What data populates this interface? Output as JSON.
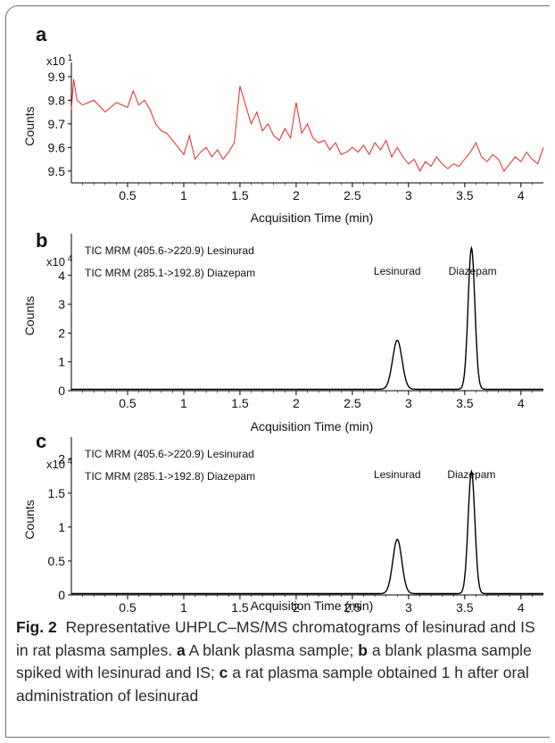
{
  "chart_data": [
    {
      "panel": "a",
      "type": "line",
      "xlabel": "Acquisition Time (min)",
      "ylabel": "Counts",
      "y_scale_label": "x10 1",
      "xlim": [
        0,
        4.2
      ],
      "ylim": [
        9.45,
        9.93
      ],
      "xticks": [
        "0.5",
        "1",
        "1.5",
        "2",
        "2.5",
        "3",
        "3.5",
        "4"
      ],
      "yticks": [
        "9.5",
        "9.6",
        "9.7",
        "9.8",
        "9.9"
      ],
      "line_color": "#e8262a",
      "series": [
        {
          "x": [
            0.0,
            0.02,
            0.05,
            0.1,
            0.2,
            0.3,
            0.4,
            0.5,
            0.55,
            0.6,
            0.65,
            0.7,
            0.75,
            0.8,
            0.85,
            0.9,
            0.95,
            1.0,
            1.05,
            1.1,
            1.15,
            1.2,
            1.25,
            1.3,
            1.35,
            1.4,
            1.45,
            1.5,
            1.55,
            1.6,
            1.65,
            1.7,
            1.75,
            1.8,
            1.85,
            1.9,
            1.95,
            2.0,
            2.05,
            2.1,
            2.15,
            2.2,
            2.25,
            2.3,
            2.35,
            2.4,
            2.45,
            2.5,
            2.55,
            2.6,
            2.65,
            2.7,
            2.75,
            2.8,
            2.85,
            2.9,
            2.95,
            3.0,
            3.05,
            3.1,
            3.15,
            3.2,
            3.25,
            3.3,
            3.35,
            3.4,
            3.45,
            3.5,
            3.55,
            3.6,
            3.65,
            3.7,
            3.75,
            3.8,
            3.85,
            3.9,
            3.95,
            4.0,
            4.05,
            4.1,
            4.15,
            4.2
          ],
          "y": [
            9.76,
            9.89,
            9.8,
            9.78,
            9.8,
            9.75,
            9.79,
            9.77,
            9.84,
            9.78,
            9.8,
            9.76,
            9.7,
            9.67,
            9.66,
            9.63,
            9.6,
            9.57,
            9.65,
            9.55,
            9.58,
            9.6,
            9.56,
            9.59,
            9.55,
            9.58,
            9.62,
            9.86,
            9.78,
            9.7,
            9.75,
            9.67,
            9.7,
            9.65,
            9.63,
            9.68,
            9.64,
            9.79,
            9.66,
            9.7,
            9.64,
            9.62,
            9.63,
            9.59,
            9.62,
            9.57,
            9.58,
            9.6,
            9.58,
            9.61,
            9.57,
            9.62,
            9.59,
            9.63,
            9.56,
            9.6,
            9.56,
            9.53,
            9.55,
            9.5,
            9.54,
            9.52,
            9.56,
            9.53,
            9.51,
            9.53,
            9.52,
            9.55,
            9.58,
            9.62,
            9.56,
            9.54,
            9.57,
            9.55,
            9.5,
            9.53,
            9.56,
            9.54,
            9.58,
            9.55,
            9.53,
            9.6
          ]
        }
      ]
    },
    {
      "panel": "b",
      "type": "line",
      "xlabel": "Acquisition Time (min)",
      "ylabel": "Counts",
      "y_scale_label": "x10 4",
      "xlim": [
        0,
        4.2
      ],
      "ylim": [
        0,
        5.2
      ],
      "xticks": [
        "0.5",
        "1",
        "1.5",
        "2",
        "2.5",
        "3",
        "3.5",
        "4"
      ],
      "yticks": [
        "0",
        "1",
        "2",
        "3",
        "4"
      ],
      "legend_lines": [
        "TIC MRM (405.6->220.9) Lesinurad",
        "TIC MRM (285.1->192.8) Diazepam"
      ],
      "peak_labels": [
        {
          "text": "Lesinurad",
          "x": 2.9
        },
        {
          "text": "Diazepam",
          "x": 3.57
        }
      ],
      "peaks": [
        {
          "name": "Lesinurad",
          "center": 2.9,
          "height": 1.7,
          "width": 0.042
        },
        {
          "name": "Diazepam",
          "center": 3.56,
          "height": 4.9,
          "width": 0.03
        }
      ],
      "baseline": 0.05,
      "line_color": "#000000"
    },
    {
      "panel": "c",
      "type": "line",
      "xlabel": "Acquisition Time (min)",
      "ylabel": "Counts",
      "y_scale_label": "x10 4",
      "xlim": [
        0,
        4.2
      ],
      "ylim": [
        0,
        2.22
      ],
      "xticks": [
        "0.5",
        "1",
        "1.5",
        "2",
        "2.5",
        "3",
        "3.5",
        "4"
      ],
      "yticks": [
        "0",
        "0.5",
        "1",
        "1.5",
        "2"
      ],
      "legend_lines": [
        "TIC MRM (405.6->220.9) Lesinurad",
        "TIC MRM (285.1->192.8) Diazepam"
      ],
      "peak_labels": [
        {
          "text": "Lesinurad",
          "x": 2.9
        },
        {
          "text": "Diazepam",
          "x": 3.56
        }
      ],
      "peaks": [
        {
          "name": "Lesinurad",
          "center": 2.9,
          "height": 0.8,
          "width": 0.04
        },
        {
          "name": "Diazepam",
          "center": 3.56,
          "height": 1.8,
          "width": 0.03
        }
      ],
      "baseline": 0.02,
      "line_color": "#000000"
    }
  ],
  "caption": {
    "fig_label": "Fig. 2",
    "lead": "Representative UHPLC–MS/MS chromatograms of lesinurad and IS in rat plasma samples. ",
    "a_label": "a",
    "a_text": " A blank plasma sample; ",
    "b_label": "b",
    "b_text": " a blank plasma sample spiked with lesinurad and IS; ",
    "c_label": "c",
    "c_text": " a rat plasma sample obtained 1 h after oral administration of lesinurad"
  }
}
